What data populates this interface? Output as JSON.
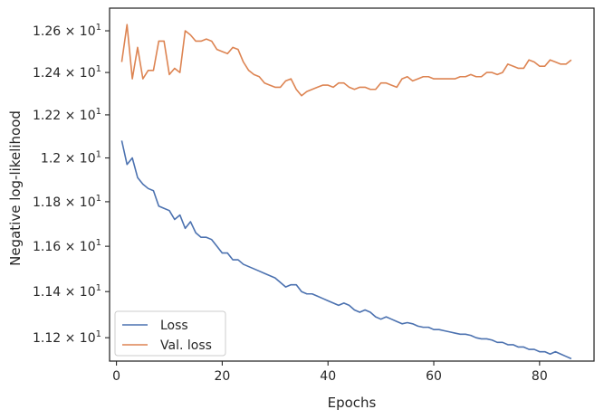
{
  "chart_data": {
    "type": "line",
    "xlabel": "Epochs",
    "ylabel": "Negative log-likelihood",
    "xlim": [
      -1.3,
      90.3
    ],
    "ylim": [
      11.1,
      12.71
    ],
    "yscale": "log",
    "grid": false,
    "legend_position": "lower-left",
    "x_ticks": [
      {
        "value": 0,
        "label": "0"
      },
      {
        "value": 20,
        "label": "20"
      },
      {
        "value": 40,
        "label": "40"
      },
      {
        "value": 60,
        "label": "60"
      },
      {
        "value": 80,
        "label": "80"
      }
    ],
    "y_ticks": [
      {
        "value": 11.2,
        "mantissa": "1.12",
        "base": "× 10",
        "exp": "1"
      },
      {
        "value": 11.4,
        "mantissa": "1.14",
        "base": "× 10",
        "exp": "1"
      },
      {
        "value": 11.6,
        "mantissa": "1.16",
        "base": "× 10",
        "exp": "1"
      },
      {
        "value": 11.8,
        "mantissa": "1.18",
        "base": "× 10",
        "exp": "1"
      },
      {
        "value": 12.0,
        "mantissa": "1.2",
        "base": "× 10",
        "exp": "1"
      },
      {
        "value": 12.2,
        "mantissa": "1.22",
        "base": "× 10",
        "exp": "1"
      },
      {
        "value": 12.4,
        "mantissa": "1.24",
        "base": "× 10",
        "exp": "1"
      },
      {
        "value": 12.6,
        "mantissa": "1.26",
        "base": "× 10",
        "exp": "1"
      }
    ],
    "series": [
      {
        "name": "Loss",
        "color": "#4c72b0",
        "x_start": 1,
        "values": [
          12.08,
          11.97,
          12.0,
          11.91,
          11.88,
          11.86,
          11.85,
          11.78,
          11.77,
          11.76,
          11.72,
          11.74,
          11.68,
          11.71,
          11.66,
          11.64,
          11.64,
          11.63,
          11.6,
          11.57,
          11.57,
          11.54,
          11.54,
          11.52,
          11.51,
          11.5,
          11.49,
          11.48,
          11.47,
          11.46,
          11.44,
          11.42,
          11.43,
          11.43,
          11.4,
          11.39,
          11.39,
          11.38,
          11.37,
          11.36,
          11.35,
          11.34,
          11.35,
          11.34,
          11.32,
          11.31,
          11.32,
          11.31,
          11.29,
          11.28,
          11.29,
          11.28,
          11.27,
          11.26,
          11.265,
          11.26,
          11.25,
          11.245,
          11.245,
          11.235,
          11.235,
          11.23,
          11.225,
          11.22,
          11.215,
          11.215,
          11.21,
          11.2,
          11.195,
          11.195,
          11.19,
          11.18,
          11.18,
          11.17,
          11.17,
          11.16,
          11.16,
          11.15,
          11.15,
          11.14,
          11.14,
          11.13,
          11.14,
          11.13,
          11.12,
          11.11
        ]
      },
      {
        "name": "Val. loss",
        "color": "#dd8452",
        "x_start": 1,
        "values": [
          12.45,
          12.63,
          12.37,
          12.52,
          12.37,
          12.41,
          12.41,
          12.55,
          12.55,
          12.39,
          12.42,
          12.4,
          12.6,
          12.58,
          12.55,
          12.55,
          12.56,
          12.55,
          12.51,
          12.5,
          12.49,
          12.52,
          12.51,
          12.45,
          12.41,
          12.39,
          12.38,
          12.35,
          12.34,
          12.33,
          12.33,
          12.36,
          12.37,
          12.32,
          12.29,
          12.31,
          12.32,
          12.33,
          12.34,
          12.34,
          12.33,
          12.35,
          12.35,
          12.33,
          12.32,
          12.33,
          12.33,
          12.32,
          12.32,
          12.35,
          12.35,
          12.34,
          12.33,
          12.37,
          12.38,
          12.36,
          12.37,
          12.38,
          12.38,
          12.37,
          12.37,
          12.37,
          12.37,
          12.37,
          12.38,
          12.38,
          12.39,
          12.38,
          12.38,
          12.4,
          12.4,
          12.39,
          12.4,
          12.44,
          12.43,
          12.42,
          12.42,
          12.46,
          12.45,
          12.43,
          12.43,
          12.46,
          12.45,
          12.44,
          12.44,
          12.46
        ]
      }
    ]
  }
}
